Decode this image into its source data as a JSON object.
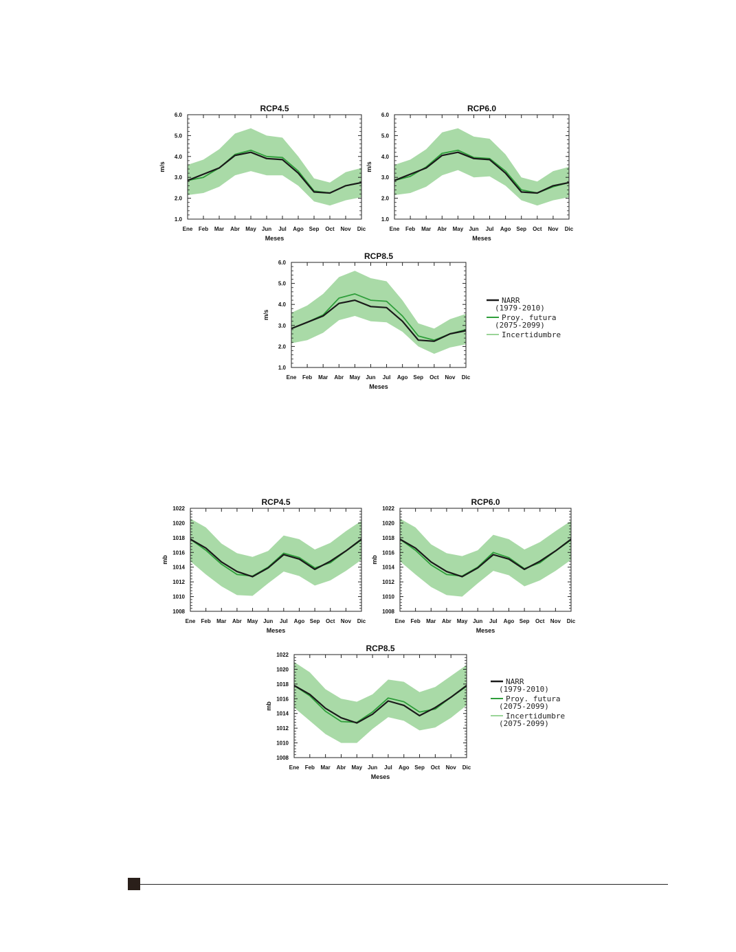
{
  "months": [
    "Ene",
    "Feb",
    "Mar",
    "Abr",
    "May",
    "Jun",
    "Jul",
    "Ago",
    "Sep",
    "Oct",
    "Nov",
    "Dic"
  ],
  "colors": {
    "narr": "#1a1a1a",
    "proj": "#2e9e3a",
    "band": "#9ad498"
  },
  "chart_data": [
    {
      "type": "line",
      "title": "RCP4.5",
      "xlabel": "Meses",
      "ylabel": "m/s",
      "ylim": [
        1.0,
        6.0
      ],
      "yticks": [
        "1.0",
        "2.0",
        "3.0",
        "4.0",
        "5.0",
        "6.0"
      ],
      "categories": [
        "Ene",
        "Feb",
        "Mar",
        "Abr",
        "May",
        "Jun",
        "Jul",
        "Ago",
        "Sep",
        "Oct",
        "Nov",
        "Dic"
      ],
      "series": [
        {
          "name": "NARR (1979-2010)",
          "values": [
            2.85,
            3.15,
            3.45,
            4.05,
            4.2,
            3.9,
            3.85,
            3.2,
            2.3,
            2.25,
            2.6,
            2.75
          ]
        },
        {
          "name": "Proy. futura (2075-2099)",
          "values": [
            2.85,
            3.0,
            3.45,
            4.1,
            4.3,
            4.0,
            3.95,
            3.3,
            2.35,
            2.25,
            2.6,
            2.75
          ]
        },
        {
          "name": "Incertidumbre",
          "lower": [
            2.15,
            2.25,
            2.55,
            3.1,
            3.3,
            3.1,
            3.1,
            2.6,
            1.85,
            1.65,
            1.9,
            2.05
          ],
          "upper": [
            3.6,
            3.85,
            4.35,
            5.1,
            5.35,
            5.0,
            4.9,
            4.0,
            2.95,
            2.75,
            3.25,
            3.45
          ]
        }
      ]
    },
    {
      "type": "line",
      "title": "RCP6.0",
      "xlabel": "Meses",
      "ylabel": "m/s",
      "ylim": [
        1.0,
        6.0
      ],
      "yticks": [
        "1.0",
        "2.0",
        "3.0",
        "4.0",
        "5.0",
        "6.0"
      ],
      "categories": [
        "Ene",
        "Feb",
        "Mar",
        "Abr",
        "May",
        "Jun",
        "Jul",
        "Ago",
        "Sep",
        "Oct",
        "Nov",
        "Dic"
      ],
      "series": [
        {
          "name": "NARR (1979-2010)",
          "values": [
            2.85,
            3.15,
            3.45,
            4.05,
            4.2,
            3.9,
            3.85,
            3.2,
            2.3,
            2.25,
            2.6,
            2.75
          ]
        },
        {
          "name": "Proy. futura (2075-2099)",
          "values": [
            2.85,
            3.05,
            3.5,
            4.15,
            4.3,
            3.95,
            3.9,
            3.3,
            2.4,
            2.25,
            2.55,
            2.75
          ]
        },
        {
          "name": "Incertidumbre",
          "lower": [
            2.15,
            2.25,
            2.55,
            3.1,
            3.35,
            3.0,
            3.05,
            2.6,
            1.9,
            1.65,
            1.9,
            2.05
          ],
          "upper": [
            3.6,
            3.85,
            4.35,
            5.15,
            5.35,
            4.95,
            4.85,
            4.1,
            3.0,
            2.8,
            3.3,
            3.5
          ]
        }
      ]
    },
    {
      "type": "line",
      "title": "RCP8.5",
      "xlabel": "Meses",
      "ylabel": "m/s",
      "ylim": [
        1.0,
        6.0
      ],
      "yticks": [
        "1.0",
        "2.0",
        "3.0",
        "4.0",
        "5.0",
        "6.0"
      ],
      "categories": [
        "Ene",
        "Feb",
        "Mar",
        "Abr",
        "May",
        "Jun",
        "Jul",
        "Ago",
        "Sep",
        "Oct",
        "Nov",
        "Dic"
      ],
      "series": [
        {
          "name": "NARR (1979-2010)",
          "values": [
            2.85,
            3.15,
            3.45,
            4.05,
            4.2,
            3.9,
            3.85,
            3.2,
            2.3,
            2.25,
            2.6,
            2.75
          ]
        },
        {
          "name": "Proy. futura (2075-2099)",
          "values": [
            2.85,
            3.15,
            3.5,
            4.3,
            4.5,
            4.2,
            4.15,
            3.45,
            2.5,
            2.3,
            2.6,
            2.8
          ]
        },
        {
          "name": "Incertidumbre",
          "lower": [
            2.15,
            2.3,
            2.65,
            3.25,
            3.45,
            3.2,
            3.15,
            2.7,
            2.0,
            1.65,
            1.95,
            2.1
          ],
          "upper": [
            3.6,
            3.95,
            4.5,
            5.3,
            5.6,
            5.25,
            5.1,
            4.2,
            3.1,
            2.85,
            3.3,
            3.55
          ]
        }
      ],
      "legend": {
        "placement": "right",
        "entries": [
          {
            "line1": "NARR",
            "line2": "(1979-2010)"
          },
          {
            "line1": "Proy. futura",
            "line2": "(2075-2099)"
          },
          {
            "line1": "Incertidumbre",
            "line2": ""
          }
        ]
      }
    },
    {
      "type": "line",
      "title": "RCP4.5",
      "xlabel": "Meses",
      "ylabel": "mb",
      "ylim": [
        1008,
        1022
      ],
      "yticks": [
        "1008",
        "1010",
        "1012",
        "1014",
        "1016",
        "1018",
        "1020",
        "1022"
      ],
      "categories": [
        "Ene",
        "Feb",
        "Mar",
        "Abr",
        "May",
        "Jun",
        "Jul",
        "Ago",
        "Sep",
        "Oct",
        "Nov",
        "Dic"
      ],
      "series": [
        {
          "name": "NARR (1979-2010)",
          "values": [
            1017.8,
            1016.6,
            1014.7,
            1013.4,
            1012.7,
            1013.9,
            1015.7,
            1015.1,
            1013.7,
            1014.8,
            1016.2,
            1017.8
          ]
        },
        {
          "name": "Proy. futura (2075-2099)",
          "values": [
            1017.8,
            1016.3,
            1014.4,
            1013.0,
            1012.8,
            1014.0,
            1015.9,
            1015.3,
            1013.9,
            1014.6,
            1016.2,
            1017.7
          ]
        },
        {
          "name": "Incertidumbre",
          "lower": [
            1014.8,
            1013.0,
            1011.4,
            1010.2,
            1010.1,
            1011.8,
            1013.4,
            1012.8,
            1011.5,
            1012.2,
            1013.5,
            1015.0
          ],
          "upper": [
            1020.6,
            1019.4,
            1017.2,
            1015.9,
            1015.4,
            1016.2,
            1018.3,
            1017.8,
            1016.4,
            1017.3,
            1018.9,
            1020.3
          ]
        }
      ]
    },
    {
      "type": "line",
      "title": "RCP6.0",
      "xlabel": "Meses",
      "ylabel": "mb",
      "ylim": [
        1008,
        1022
      ],
      "yticks": [
        "1008",
        "1010",
        "1012",
        "1014",
        "1016",
        "1018",
        "1020",
        "1022"
      ],
      "categories": [
        "Ene",
        "Feb",
        "Mar",
        "Abr",
        "May",
        "Jun",
        "Jul",
        "Ago",
        "Sep",
        "Oct",
        "Nov",
        "Dic"
      ],
      "series": [
        {
          "name": "NARR (1979-2010)",
          "values": [
            1017.8,
            1016.6,
            1014.7,
            1013.4,
            1012.7,
            1013.9,
            1015.7,
            1015.1,
            1013.7,
            1014.8,
            1016.2,
            1017.8
          ]
        },
        {
          "name": "Proy. futura (2075-2099)",
          "values": [
            1017.8,
            1016.3,
            1014.3,
            1013.0,
            1012.8,
            1014.0,
            1016.0,
            1015.3,
            1013.8,
            1014.6,
            1016.2,
            1017.7
          ]
        },
        {
          "name": "Incertidumbre",
          "lower": [
            1014.8,
            1013.0,
            1011.3,
            1010.2,
            1010.0,
            1011.8,
            1013.5,
            1012.9,
            1011.4,
            1012.2,
            1013.5,
            1015.0
          ],
          "upper": [
            1020.6,
            1019.4,
            1017.1,
            1015.9,
            1015.5,
            1016.3,
            1018.4,
            1017.8,
            1016.4,
            1017.4,
            1018.9,
            1020.3
          ]
        }
      ]
    },
    {
      "type": "line",
      "title": "RCP8.5",
      "xlabel": "Meses",
      "ylabel": "mb",
      "ylim": [
        1008,
        1022
      ],
      "yticks": [
        "1008",
        "1010",
        "1012",
        "1014",
        "1016",
        "1018",
        "1020",
        "1022"
      ],
      "categories": [
        "Ene",
        "Feb",
        "Mar",
        "Abr",
        "May",
        "Jun",
        "Jul",
        "Ago",
        "Sep",
        "Oct",
        "Nov",
        "Dic"
      ],
      "series": [
        {
          "name": "NARR (1979-2010)",
          "values": [
            1017.8,
            1016.6,
            1014.7,
            1013.4,
            1012.7,
            1013.9,
            1015.7,
            1015.1,
            1013.7,
            1014.8,
            1016.2,
            1017.8
          ]
        },
        {
          "name": "Proy. futura (2075-2099)",
          "values": [
            1017.8,
            1016.4,
            1014.3,
            1012.9,
            1012.8,
            1014.2,
            1016.1,
            1015.6,
            1014.2,
            1014.6,
            1016.2,
            1017.7
          ]
        },
        {
          "name": "Incertidumbre",
          "lower": [
            1014.8,
            1013.0,
            1011.2,
            1010.0,
            1010.0,
            1011.9,
            1013.5,
            1013.0,
            1011.7,
            1012.1,
            1013.4,
            1015.1
          ],
          "upper": [
            1021.0,
            1019.6,
            1017.3,
            1016.0,
            1015.6,
            1016.6,
            1018.6,
            1018.3,
            1016.9,
            1017.6,
            1019.1,
            1020.6
          ]
        }
      ],
      "legend": {
        "placement": "right",
        "entries": [
          {
            "line1": "NARR",
            "line2": "(1979-2010)"
          },
          {
            "line1": "Proy. futura",
            "line2": "(2075-2099)"
          },
          {
            "line1": "Incertidumbre",
            "line2": "(2075-2099)"
          }
        ]
      }
    }
  ]
}
